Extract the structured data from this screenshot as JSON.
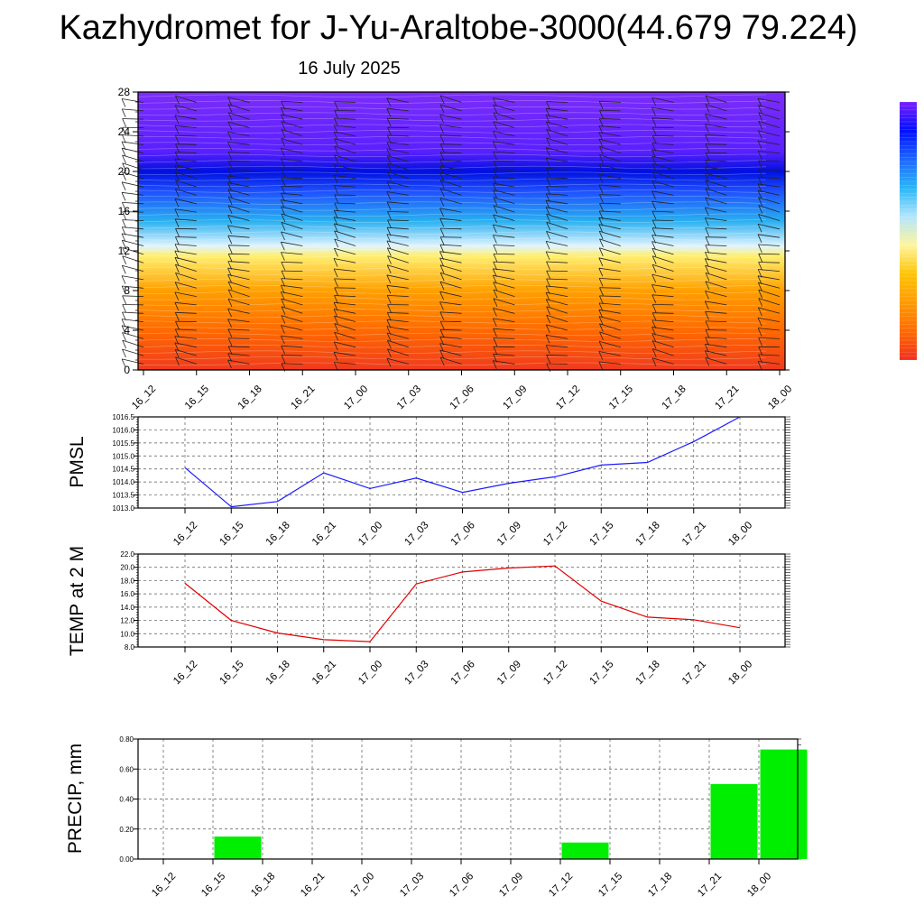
{
  "header": {
    "title": "Kazhydromet for J-Yu-Araltobe-3000(44.679 79.224)",
    "subtitle": "16 July 2025"
  },
  "colorbar": {
    "colors": [
      "#f03020",
      "#ff6a00",
      "#ff9a00",
      "#ffc400",
      "#fff59d",
      "#b3e5fc",
      "#29b6f6",
      "#1e66ff",
      "#0010ff",
      "#7a1fff"
    ]
  },
  "chart_data": [
    {
      "type": "heatmap",
      "name": "cross-section",
      "times": [
        "16_12",
        "16_15",
        "16_18",
        "16_21",
        "17_00",
        "17_03",
        "17_06",
        "17_09",
        "17_12",
        "17_15",
        "17_18",
        "17_21",
        "18_00"
      ],
      "yticks": [
        0,
        4,
        8,
        12,
        16,
        20,
        24,
        28
      ],
      "ylim": [
        0,
        28
      ],
      "colors": [
        {
          "level": 0,
          "color": "#f03a1e"
        },
        {
          "level": 4,
          "color": "#ff6a00"
        },
        {
          "level": 8,
          "color": "#ffa000"
        },
        {
          "level": 11.5,
          "color": "#ffef70"
        },
        {
          "level": 12.5,
          "color": "#e0f4ff"
        },
        {
          "level": 15,
          "color": "#29b0f0"
        },
        {
          "level": 18,
          "color": "#1e50ff"
        },
        {
          "level": 20,
          "color": "#0010e0"
        },
        {
          "level": 22,
          "color": "#5a20ff"
        },
        {
          "level": 28,
          "color": "#7c2dfa"
        }
      ]
    },
    {
      "type": "line",
      "ylabel": "PMSL",
      "x": [
        "16_12",
        "16_15",
        "16_18",
        "16_21",
        "17_00",
        "17_03",
        "17_06",
        "17_09",
        "17_12",
        "17_15",
        "17_18",
        "17_21",
        "18_00"
      ],
      "values": [
        1014.55,
        1013.05,
        1013.25,
        1014.35,
        1013.75,
        1014.15,
        1013.6,
        1013.95,
        1014.2,
        1014.65,
        1014.75,
        1015.55,
        1016.5
      ],
      "ylim": [
        1013.0,
        1016.5
      ],
      "yticks": [
        "1013.0",
        "1013.5",
        "1014.0",
        "1014.5",
        "1015.0",
        "1015.5",
        "1016.0",
        "1016.5"
      ],
      "color": "#1a1aff",
      "grid": true
    },
    {
      "type": "line",
      "ylabel": "TEMP at 2 M",
      "x": [
        "16_12",
        "16_15",
        "16_18",
        "16_21",
        "17_00",
        "17_03",
        "17_06",
        "17_09",
        "17_12",
        "17_15",
        "17_18",
        "17_21",
        "18_00"
      ],
      "values": [
        17.6,
        12.0,
        10.1,
        9.1,
        8.8,
        17.5,
        19.3,
        19.9,
        20.2,
        14.9,
        12.5,
        12.1,
        10.9
      ],
      "ylim": [
        8.0,
        22.0
      ],
      "yticks": [
        "8.0",
        "10.0",
        "12.0",
        "14.0",
        "16.0",
        "18.0",
        "20.0",
        "22.0"
      ],
      "color": "#e00000",
      "grid": true
    },
    {
      "type": "bar",
      "ylabel": "PRECIP, mm",
      "categories": [
        "16_12",
        "16_15",
        "16_18",
        "16_21",
        "17_00",
        "17_03",
        "17_06",
        "17_09",
        "17_12",
        "17_15",
        "17_18",
        "17_21",
        "18_00"
      ],
      "values": [
        0.0,
        0.15,
        0.0,
        0.0,
        0.0,
        0.0,
        0.0,
        0.0,
        0.11,
        0.0,
        0.0,
        0.5,
        0.73
      ],
      "ylim": [
        0.0,
        0.8
      ],
      "yticks": [
        "0.00",
        "0.20",
        "0.40",
        "0.60",
        "0.80"
      ],
      "color": "#00ee00",
      "grid": true
    }
  ]
}
